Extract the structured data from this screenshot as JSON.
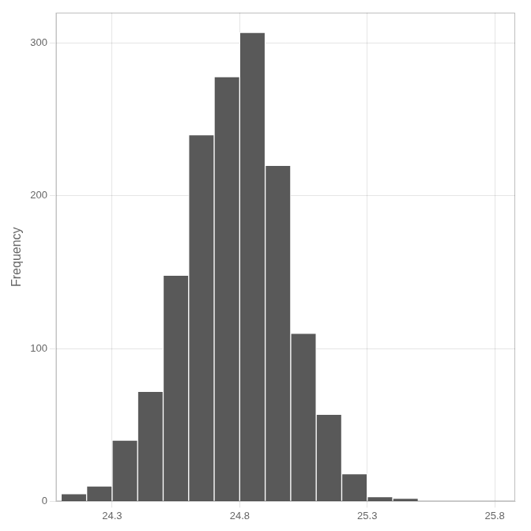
{
  "chart_data": {
    "type": "histogram",
    "bins": [
      24.1,
      24.2,
      24.3,
      24.4,
      24.5,
      24.6,
      24.7,
      24.8,
      24.9,
      25.0,
      25.1,
      25.2,
      25.3,
      25.4,
      25.5,
      25.6,
      25.7,
      25.8
    ],
    "values": [
      5,
      10,
      40,
      72,
      148,
      240,
      278,
      307,
      220,
      110,
      57,
      18,
      3,
      2,
      0,
      0,
      0
    ],
    "color": "#595959",
    "y_label": "Frequency",
    "xlim": [
      24.08,
      25.88
    ],
    "xticks": [
      24.3,
      24.8,
      25.3,
      25.8
    ],
    "ylim": [
      0,
      320
    ],
    "yticks": [
      0,
      100,
      200,
      300
    ],
    "grid": true
  }
}
